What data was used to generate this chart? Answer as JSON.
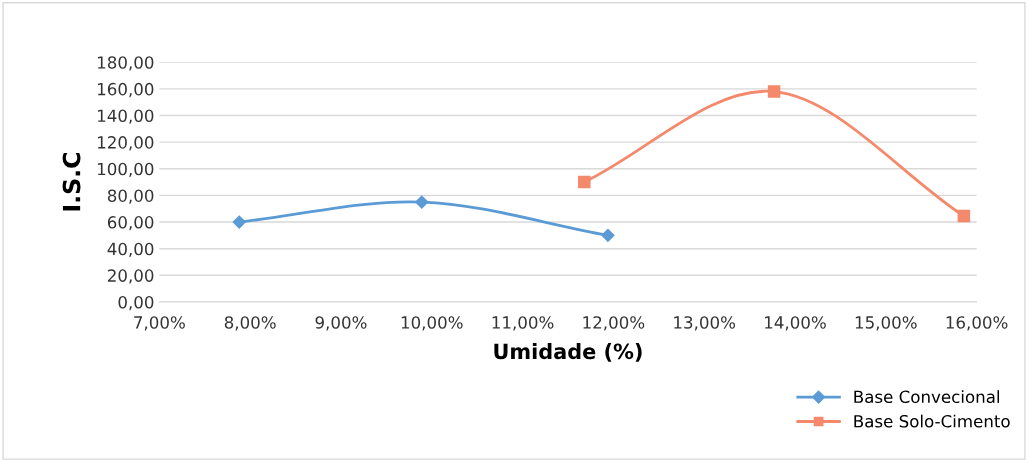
{
  "chart_data": {
    "type": "line",
    "xlabel": "Umidade (%)",
    "ylabel": "I.S.C",
    "series": [
      {
        "name": "Base Convecional",
        "color": "#5b9bd5",
        "marker": "diamond",
        "x": [
          7.88,
          9.89,
          11.94
        ],
        "values": [
          60,
          75,
          50
        ]
      },
      {
        "name": "Base Solo-Cimento",
        "color": "#f4896b",
        "marker": "square",
        "x": [
          11.68,
          13.77,
          15.86
        ],
        "values": [
          90,
          158,
          64.5
        ]
      }
    ],
    "xlim": [
      7,
      16
    ],
    "xticks": [
      {
        "value": 7,
        "label": "7,00%"
      },
      {
        "value": 8,
        "label": "8,00%"
      },
      {
        "value": 9,
        "label": "9,00%"
      },
      {
        "value": 10,
        "label": "10,00%"
      },
      {
        "value": 11,
        "label": "11,00%"
      },
      {
        "value": 12,
        "label": "12,00%"
      },
      {
        "value": 13,
        "label": "13,00%"
      },
      {
        "value": 14,
        "label": "14,00%"
      },
      {
        "value": 15,
        "label": "15,00%"
      },
      {
        "value": 16,
        "label": "16,00%"
      }
    ],
    "ylim": [
      0,
      180
    ],
    "yticks": [
      {
        "value": 0,
        "label": "0,00"
      },
      {
        "value": 20,
        "label": "20,00"
      },
      {
        "value": 40,
        "label": "40,00"
      },
      {
        "value": 60,
        "label": "60,00"
      },
      {
        "value": 80,
        "label": "80,00"
      },
      {
        "value": 100,
        "label": "100,00"
      },
      {
        "value": 120,
        "label": "120,00"
      },
      {
        "value": 140,
        "label": "140,00"
      },
      {
        "value": 160,
        "label": "160,00"
      },
      {
        "value": 180,
        "label": "180,00"
      }
    ],
    "grid": "y",
    "legend": "bottom right"
  }
}
